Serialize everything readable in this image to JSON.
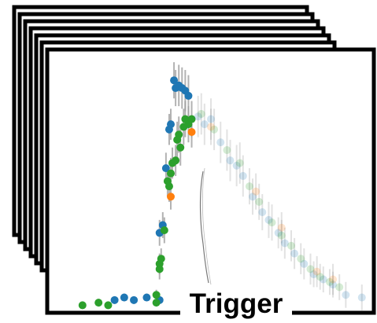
{
  "label": "Trigger",
  "colors": {
    "frame": "#000000",
    "blue": "#1f77b4",
    "green": "#2ca02c",
    "orange": "#ff7f0e",
    "errorbar": "#a0a0a0",
    "trace": "#555555"
  },
  "chart_data": {
    "type": "scatter",
    "title": "",
    "xlabel": "",
    "ylabel": "",
    "grid": false,
    "legend": "none",
    "xlim": [
      0,
      100
    ],
    "ylim": [
      0,
      100
    ],
    "series": [
      {
        "color_key": "blue",
        "points": [
          {
            "x": 20,
            "y": 4,
            "e": 1.5
          },
          {
            "x": 23,
            "y": 5,
            "e": 1.5
          },
          {
            "x": 26,
            "y": 4,
            "e": 1.5
          },
          {
            "x": 30,
            "y": 5,
            "e": 1.5
          },
          {
            "x": 34,
            "y": 4,
            "e": 1.5
          },
          {
            "x": 34,
            "y": 30,
            "e": 5
          },
          {
            "x": 35,
            "y": 33,
            "e": 5
          },
          {
            "x": 36,
            "y": 55,
            "e": 6
          },
          {
            "x": 37,
            "y": 70,
            "e": 6
          },
          {
            "x": 37.5,
            "y": 72,
            "e": 6
          },
          {
            "x": 38.5,
            "y": 89,
            "e": 7
          },
          {
            "x": 39,
            "y": 86,
            "e": 7
          },
          {
            "x": 40,
            "y": 87,
            "e": 8
          },
          {
            "x": 41,
            "y": 86,
            "e": 8
          },
          {
            "x": 42,
            "y": 85,
            "e": 8
          },
          {
            "x": 43,
            "y": 83,
            "e": 8
          }
        ]
      },
      {
        "color_key": "green",
        "points": [
          {
            "x": 10,
            "y": 2,
            "e": 1.5
          },
          {
            "x": 15,
            "y": 3,
            "e": 1.5
          },
          {
            "x": 18,
            "y": 2,
            "e": 1.5
          },
          {
            "x": 33,
            "y": 3,
            "e": 1.5
          },
          {
            "x": 33,
            "y": 6,
            "e": 2
          },
          {
            "x": 34,
            "y": 16,
            "e": 4
          },
          {
            "x": 34,
            "y": 18,
            "e": 4
          },
          {
            "x": 34.5,
            "y": 20,
            "e": 4
          },
          {
            "x": 35.5,
            "y": 31,
            "e": 5
          },
          {
            "x": 36.5,
            "y": 50,
            "e": 6
          },
          {
            "x": 37,
            "y": 48,
            "e": 6
          },
          {
            "x": 37.5,
            "y": 53,
            "e": 6
          },
          {
            "x": 38,
            "y": 57,
            "e": 6
          },
          {
            "x": 39,
            "y": 58,
            "e": 6
          },
          {
            "x": 39.5,
            "y": 66,
            "e": 7
          },
          {
            "x": 40,
            "y": 68,
            "e": 7
          },
          {
            "x": 40.5,
            "y": 63,
            "e": 7
          },
          {
            "x": 41.5,
            "y": 71,
            "e": 7
          },
          {
            "x": 42,
            "y": 74,
            "e": 7
          },
          {
            "x": 43,
            "y": 72,
            "e": 7
          },
          {
            "x": 44,
            "y": 74,
            "e": 7
          }
        ]
      },
      {
        "color_key": "orange",
        "points": [
          {
            "x": 37.5,
            "y": 44,
            "e": 5
          },
          {
            "x": 44,
            "y": 69,
            "e": 6
          }
        ]
      },
      {
        "color_key": "blue",
        "faded": true,
        "points": [
          {
            "x": 46,
            "y": 75,
            "e": 8
          },
          {
            "x": 48,
            "y": 72,
            "e": 8
          },
          {
            "x": 50,
            "y": 74,
            "e": 8
          },
          {
            "x": 53,
            "y": 65,
            "e": 8
          },
          {
            "x": 56,
            "y": 58,
            "e": 8
          },
          {
            "x": 58,
            "y": 56,
            "e": 8
          },
          {
            "x": 60,
            "y": 52,
            "e": 8
          },
          {
            "x": 63,
            "y": 44,
            "e": 7
          },
          {
            "x": 66,
            "y": 38,
            "e": 7
          },
          {
            "x": 68,
            "y": 35,
            "e": 7
          },
          {
            "x": 71,
            "y": 30,
            "e": 6
          },
          {
            "x": 73,
            "y": 26,
            "e": 6
          },
          {
            "x": 76,
            "y": 22,
            "e": 6
          },
          {
            "x": 79,
            "y": 18,
            "e": 6
          },
          {
            "x": 82,
            "y": 14,
            "e": 5
          },
          {
            "x": 85,
            "y": 12,
            "e": 5
          },
          {
            "x": 88,
            "y": 10,
            "e": 5
          },
          {
            "x": 92,
            "y": 6,
            "e": 5
          },
          {
            "x": 97,
            "y": 5,
            "e": 5
          }
        ]
      },
      {
        "color_key": "green",
        "faded": true,
        "points": [
          {
            "x": 47,
            "y": 76,
            "e": 8
          },
          {
            "x": 51,
            "y": 70,
            "e": 8
          },
          {
            "x": 55,
            "y": 62,
            "e": 8
          },
          {
            "x": 59,
            "y": 57,
            "e": 8
          },
          {
            "x": 62,
            "y": 48,
            "e": 7
          },
          {
            "x": 65,
            "y": 42,
            "e": 7
          },
          {
            "x": 69,
            "y": 34,
            "e": 7
          },
          {
            "x": 72,
            "y": 29,
            "e": 6
          },
          {
            "x": 75,
            "y": 25,
            "e": 6
          },
          {
            "x": 78,
            "y": 20,
            "e": 6
          },
          {
            "x": 81,
            "y": 16,
            "e": 6
          },
          {
            "x": 84,
            "y": 13,
            "e": 5
          },
          {
            "x": 87,
            "y": 11,
            "e": 5
          },
          {
            "x": 90,
            "y": 9,
            "e": 5
          }
        ]
      },
      {
        "color_key": "orange",
        "faded": true,
        "points": [
          {
            "x": 50,
            "y": 71,
            "e": 7
          },
          {
            "x": 64,
            "y": 46,
            "e": 7
          },
          {
            "x": 72,
            "y": 32,
            "e": 6
          },
          {
            "x": 83,
            "y": 15,
            "e": 6
          },
          {
            "x": 88,
            "y": 12,
            "e": 6
          }
        ]
      }
    ]
  }
}
